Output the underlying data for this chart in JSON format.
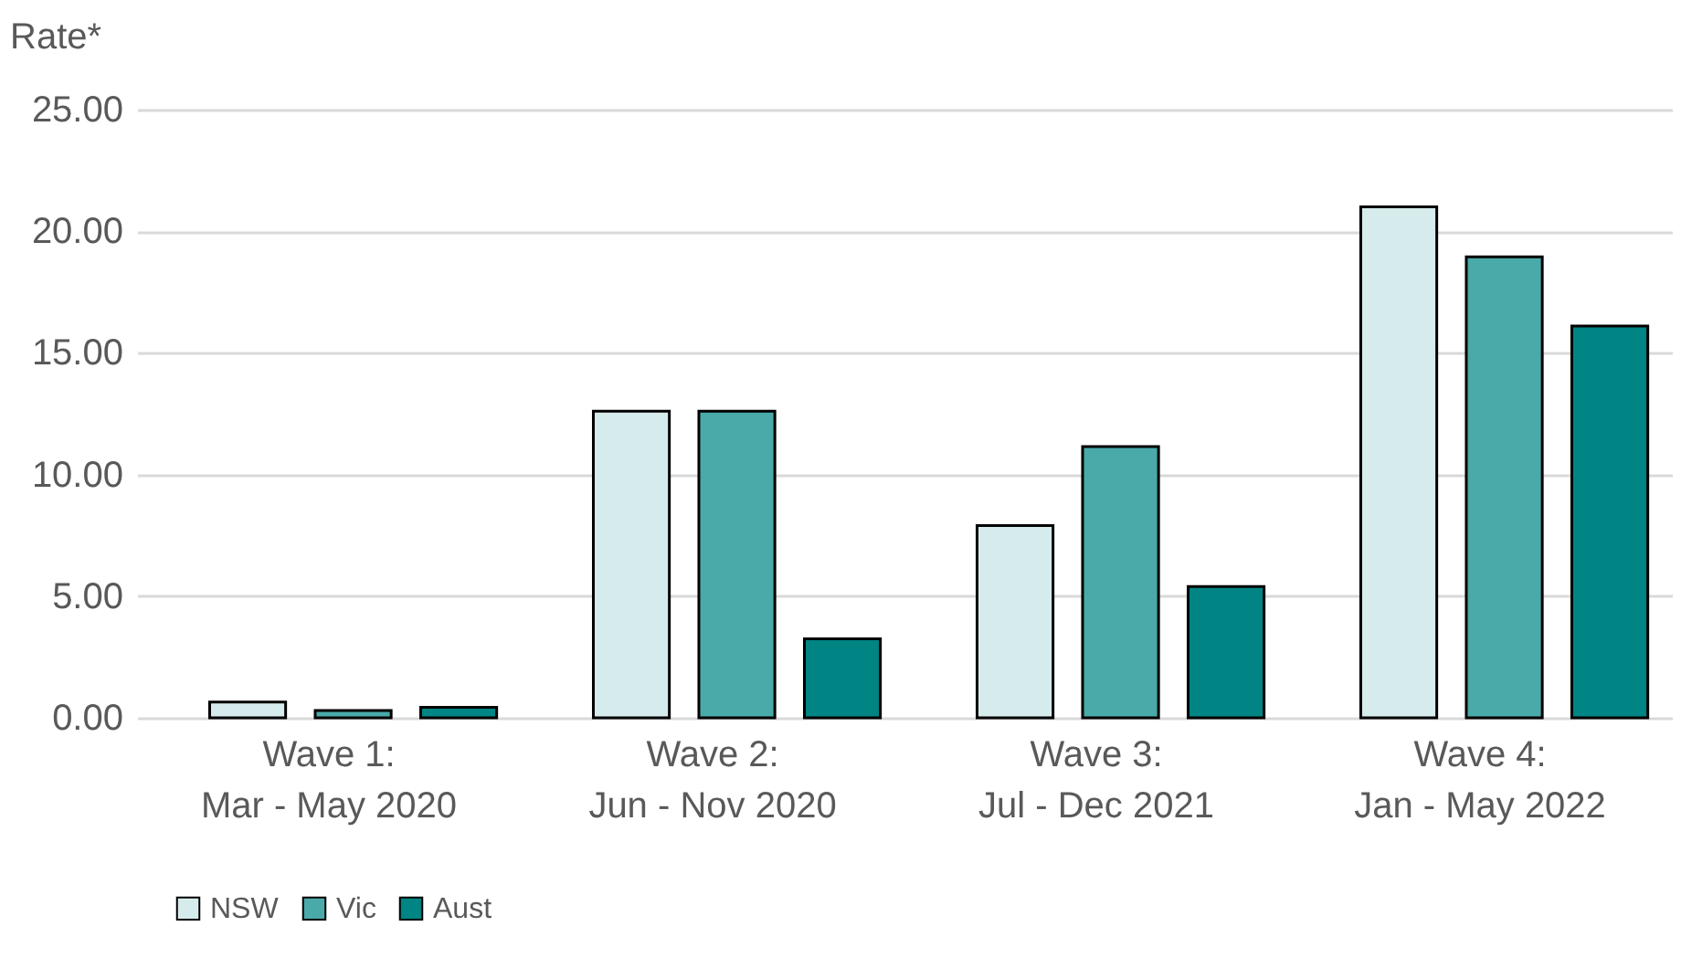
{
  "chart_data": {
    "type": "bar",
    "ylabel": "Rate*",
    "categories": [
      "Wave 1:\nMar - May 2020",
      "Wave 2:\nJun - Nov 2020",
      "Wave 3:\nJul - Dec 2021",
      "Wave 4:\nJan - May 2022"
    ],
    "series": [
      {
        "name": "NSW",
        "color": "#d6ecec",
        "values": [
          0.65,
          12.6,
          7.9,
          21.0
        ]
      },
      {
        "name": "Vic",
        "color": "#4aa9a9",
        "values": [
          0.3,
          12.6,
          11.15,
          18.95
        ]
      },
      {
        "name": "Aust",
        "color": "#008484",
        "values": [
          0.43,
          3.25,
          5.4,
          16.1
        ]
      }
    ],
    "ylim": [
      0,
      25
    ],
    "yticks": [
      {
        "value": 0,
        "label": "0.00"
      },
      {
        "value": 5,
        "label": "5.00"
      },
      {
        "value": 10,
        "label": "10.00"
      },
      {
        "value": 15,
        "label": "15.00"
      },
      {
        "value": 20,
        "label": "20.00"
      },
      {
        "value": 25,
        "label": "25.00"
      }
    ],
    "grid": "y",
    "legend": "bottom"
  }
}
